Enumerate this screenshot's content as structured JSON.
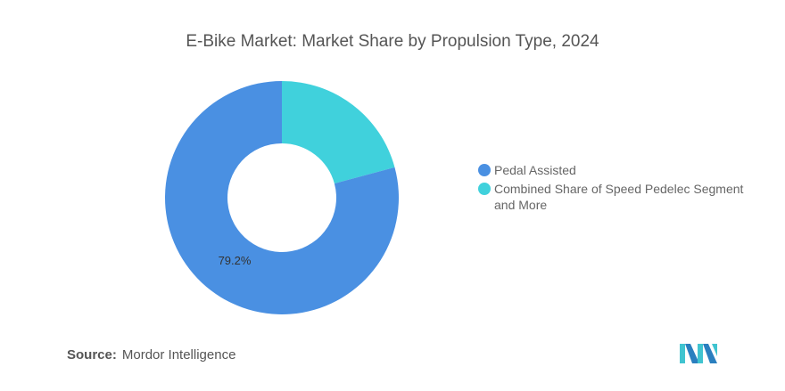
{
  "chart_data": {
    "type": "pie",
    "donut": true,
    "title": "E-Bike Market: Market Share by Propulsion Type, 2024",
    "series": [
      {
        "name": "Pedal Assisted",
        "value": 79.2,
        "color": "#4a90e2",
        "label": "79.2%"
      },
      {
        "name": "Combined Share of Speed Pedelec Segment and More",
        "value": 20.8,
        "color": "#40d1dc"
      }
    ],
    "legend": "right"
  },
  "source": {
    "label": "Source:",
    "value": "Mordor Intelligence"
  },
  "logo": "Mordor Intelligence logo"
}
